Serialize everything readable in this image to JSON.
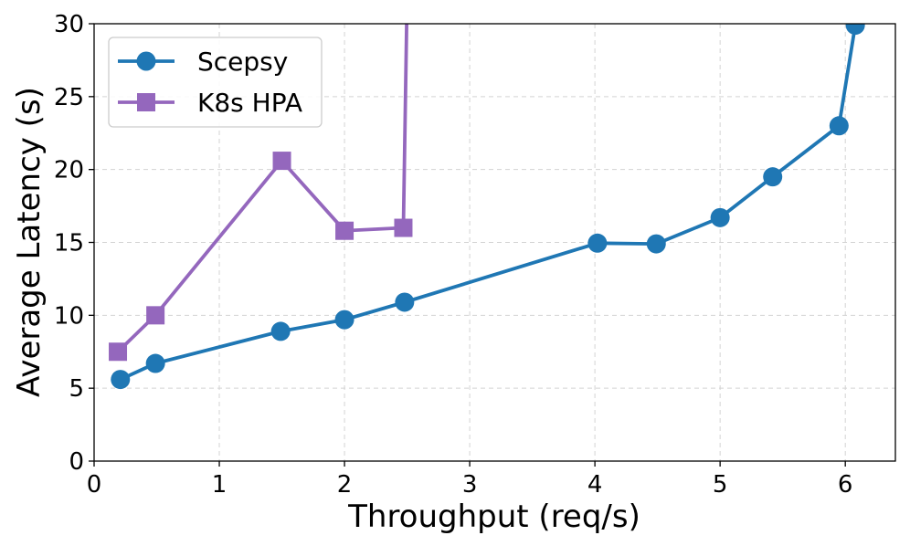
{
  "chart_data": {
    "type": "line",
    "title": "",
    "xlabel": "Throughput (req/s)",
    "ylabel": "Average Latency (s)",
    "xlim": [
      0,
      6.4
    ],
    "ylim": [
      0,
      30
    ],
    "xticks": [
      0,
      1,
      2,
      3,
      4,
      5,
      6
    ],
    "yticks": [
      0,
      5,
      10,
      15,
      20,
      25,
      30
    ],
    "grid": true,
    "legend_position": "top-left",
    "series": [
      {
        "name": "Scepsy",
        "color": "#1f77b4",
        "marker": "circle",
        "x": [
          0.21,
          0.49,
          1.49,
          2.0,
          2.48,
          4.02,
          4.49,
          5.0,
          5.42,
          5.95,
          6.08
        ],
        "y": [
          5.6,
          6.7,
          8.9,
          9.7,
          10.9,
          14.95,
          14.9,
          16.7,
          19.5,
          23.0,
          29.9
        ]
      },
      {
        "name": "K8s HPA",
        "color": "#9467bd",
        "marker": "square",
        "x": [
          0.19,
          0.49,
          1.5,
          2.0,
          2.47,
          2.5
        ],
        "y": [
          7.5,
          10.0,
          20.6,
          15.8,
          16.0,
          32.0
        ]
      }
    ]
  }
}
